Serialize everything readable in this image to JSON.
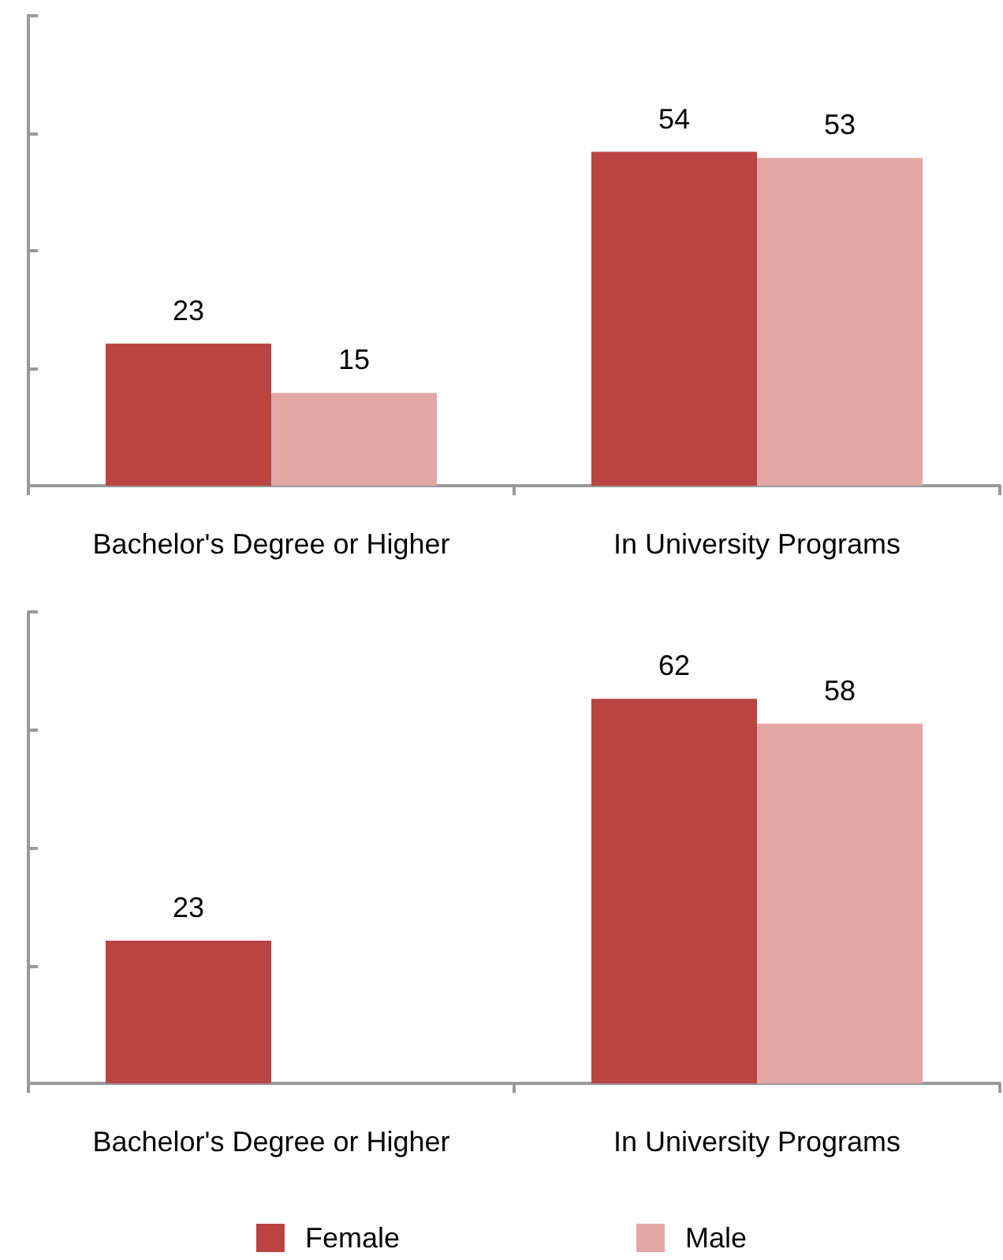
{
  "chart_data": [
    {
      "type": "bar",
      "categories": [
        "Bachelor's Degree or Higher",
        "In University Programs"
      ],
      "series": [
        {
          "color": "#b94441",
          "values": [
            23,
            54
          ]
        },
        {
          "color": "#e2a8a6",
          "values": [
            15,
            53
          ]
        }
      ],
      "ylim": [
        0,
        76
      ],
      "yticks": [
        {
          "value": 0,
          "label": null
        },
        {
          "value": 19,
          "label": null
        },
        {
          "value": 38,
          "label": null
        },
        {
          "value": 57,
          "label": null
        },
        {
          "value": 76,
          "label": null
        }
      ],
      "tick_labels": "x",
      "data_labels": true,
      "grid": false,
      "legend": false
    },
    {
      "type": "bar",
      "categories": [
        "Bachelor's Degree or Higher",
        "In University Programs"
      ],
      "series": [
        {
          "name": "Female",
          "color": "#b94441",
          "values": [
            23,
            62
          ]
        },
        {
          "name": "Male",
          "color": "#e2a8a6",
          "values": [
            null,
            58
          ]
        }
      ],
      "ylim": [
        0,
        76
      ],
      "yticks": [
        {
          "value": 0,
          "label": null
        },
        {
          "value": 19,
          "label": null
        },
        {
          "value": 38,
          "label": null
        },
        {
          "value": 57,
          "label": null
        },
        {
          "value": 76,
          "label": null
        }
      ],
      "tick_labels": "x",
      "data_labels": true,
      "grid": false,
      "legend": "bottom"
    }
  ]
}
